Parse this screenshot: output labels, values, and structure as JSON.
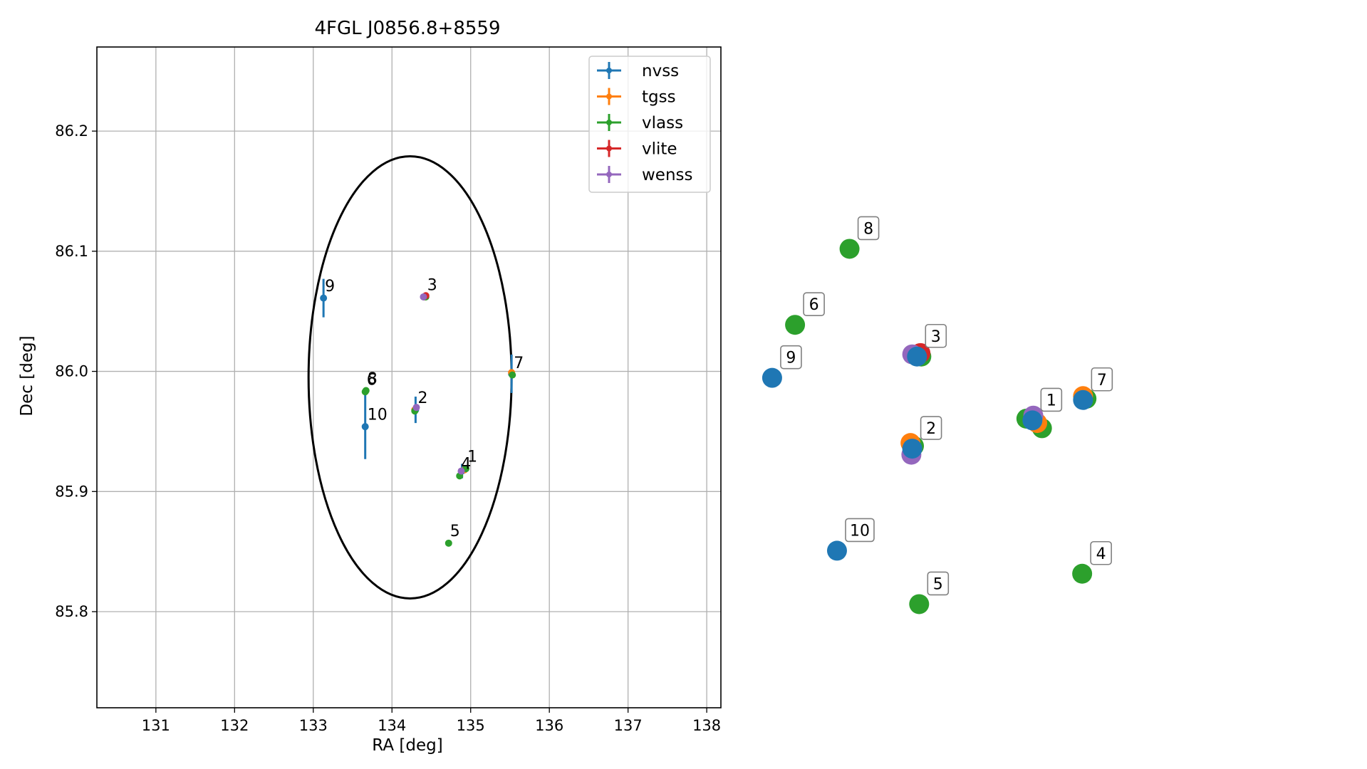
{
  "chart_data": [
    {
      "type": "scatter",
      "title": "4FGL J0856.8+8559",
      "xlabel": "RA [deg]",
      "ylabel": "Dec [deg]",
      "xlim": [
        130.25,
        138.18
      ],
      "ylim": [
        85.72,
        86.27
      ],
      "xticks": [
        "131",
        "132",
        "133",
        "134",
        "135",
        "136",
        "137",
        "138"
      ],
      "yticks": [
        "85.8",
        "85.9",
        "86.0",
        "86.1",
        "86.2"
      ],
      "grid": true,
      "legend_placement": "top-right",
      "colors": {
        "nvss": "#1f77b4",
        "tgss": "#ff7f0e",
        "vlass": "#2ca02c",
        "vlite": "#d62728",
        "wenss": "#9467bd"
      },
      "ellipse": {
        "center": [
          134.23,
          85.995
        ],
        "ra_semi_axis": 1.29,
        "dec_semi_axis": 0.184
      },
      "series": [
        {
          "name": "nvss",
          "points": [
            {
              "x": 134.89,
              "y": 85.917,
              "yerr": 0.006
            },
            {
              "x": 134.3,
              "y": 85.968,
              "yerr": 0.011
            },
            {
              "x": 134.41,
              "y": 86.062,
              "yerr": 0.003
            },
            {
              "x": 135.52,
              "y": 85.998,
              "yerr": 0.016
            },
            {
              "x": 133.13,
              "y": 86.061,
              "yerr": 0.016
            },
            {
              "x": 133.66,
              "y": 85.954,
              "yerr": 0.027
            }
          ]
        },
        {
          "name": "tgss",
          "points": [
            {
              "x": 134.92,
              "y": 85.918,
              "yerr": 0.002
            },
            {
              "x": 134.29,
              "y": 85.968,
              "yerr": 0.002
            },
            {
              "x": 134.42,
              "y": 86.062,
              "yerr": 0.002
            },
            {
              "x": 135.52,
              "y": 85.999,
              "yerr": 0.002
            }
          ]
        },
        {
          "name": "vlass",
          "points": [
            {
              "x": 134.94,
              "y": 85.919,
              "yerr": 0.002
            },
            {
              "x": 134.29,
              "y": 85.967,
              "yerr": 0.002
            },
            {
              "x": 134.43,
              "y": 86.062,
              "yerr": 0.002
            },
            {
              "x": 134.86,
              "y": 85.913,
              "yerr": 0.002
            },
            {
              "x": 134.72,
              "y": 85.857,
              "yerr": 0.002
            },
            {
              "x": 133.66,
              "y": 85.983,
              "yerr": 0.002
            },
            {
              "x": 135.53,
              "y": 85.997,
              "yerr": 0.002
            },
            {
              "x": 133.67,
              "y": 85.984,
              "yerr": 0.002
            }
          ]
        },
        {
          "name": "vlite",
          "points": [
            {
              "x": 134.43,
              "y": 86.063,
              "yerr": 0.002
            }
          ]
        },
        {
          "name": "wenss",
          "points": [
            {
              "x": 134.88,
              "y": 85.917,
              "yerr": 0.002
            },
            {
              "x": 134.31,
              "y": 85.97,
              "yerr": 0.002
            },
            {
              "x": 134.4,
              "y": 86.062,
              "yerr": 0.002
            }
          ]
        }
      ],
      "annotations": [
        {
          "text": "1",
          "x": 134.94,
          "y": 85.92
        },
        {
          "text": "2",
          "x": 134.31,
          "y": 85.969
        },
        {
          "text": "3",
          "x": 134.43,
          "y": 86.063
        },
        {
          "text": "4",
          "x": 134.86,
          "y": 85.914
        },
        {
          "text": "5",
          "x": 134.72,
          "y": 85.858
        },
        {
          "text": "6",
          "x": 133.66,
          "y": 85.984
        },
        {
          "text": "7",
          "x": 135.53,
          "y": 85.998
        },
        {
          "text": "8",
          "x": 133.67,
          "y": 85.985
        },
        {
          "text": "9",
          "x": 133.13,
          "y": 86.062
        },
        {
          "text": "10",
          "x": 133.67,
          "y": 85.955
        }
      ]
    },
    {
      "type": "scatter",
      "title": "",
      "grid": false,
      "axes": false,
      "nodes": [
        {
          "label": "1",
          "x": 0.62,
          "y": 0.478,
          "markers": [
            {
              "survey": "vlass",
              "dx": -0.014,
              "dy": 0.004
            },
            {
              "survey": "vlass",
              "dx": 0.022,
              "dy": -0.018
            },
            {
              "survey": "tgss",
              "dx": 0.011,
              "dy": -0.006
            },
            {
              "survey": "wenss",
              "dx": 0.002,
              "dy": 0.011
            },
            {
              "survey": "nvss",
              "dx": 0.0,
              "dy": 0.0
            }
          ]
        },
        {
          "label": "2",
          "x": 0.342,
          "y": 0.413,
          "markers": [
            {
              "survey": "vlass",
              "dx": 0.004,
              "dy": 0.006
            },
            {
              "survey": "tgss",
              "dx": -0.004,
              "dy": 0.013
            },
            {
              "survey": "wenss",
              "dx": -0.002,
              "dy": -0.014
            },
            {
              "survey": "nvss",
              "dx": 0.0,
              "dy": 0.0
            }
          ]
        },
        {
          "label": "3",
          "x": 0.353,
          "y": 0.625,
          "markers": [
            {
              "survey": "vlass",
              "dx": 0.01,
              "dy": 0.0
            },
            {
              "survey": "tgss",
              "dx": 0.004,
              "dy": 0.006
            },
            {
              "survey": "vlite",
              "dx": 0.008,
              "dy": 0.008
            },
            {
              "survey": "wenss",
              "dx": -0.011,
              "dy": 0.005
            },
            {
              "survey": "nvss",
              "dx": 0.0,
              "dy": 0.0
            }
          ]
        },
        {
          "label": "4",
          "x": 0.735,
          "y": 0.125,
          "markers": [
            {
              "survey": "vlass",
              "dx": 0,
              "dy": 0
            }
          ]
        },
        {
          "label": "5",
          "x": 0.358,
          "y": 0.055,
          "markers": [
            {
              "survey": "vlass",
              "dx": 0,
              "dy": 0
            }
          ]
        },
        {
          "label": "6",
          "x": 0.071,
          "y": 0.698,
          "markers": [
            {
              "survey": "vlass",
              "dx": 0,
              "dy": 0
            }
          ]
        },
        {
          "label": "7",
          "x": 0.737,
          "y": 0.525,
          "markers": [
            {
              "survey": "vlass",
              "dx": 0.008,
              "dy": 0.003
            },
            {
              "survey": "tgss",
              "dx": 0.0,
              "dy": 0.009
            },
            {
              "survey": "nvss",
              "dx": 0.0,
              "dy": 0.0
            }
          ]
        },
        {
          "label": "8",
          "x": 0.197,
          "y": 0.873,
          "markers": [
            {
              "survey": "vlass",
              "dx": 0,
              "dy": 0
            }
          ]
        },
        {
          "label": "9",
          "x": 0.018,
          "y": 0.576,
          "markers": [
            {
              "survey": "nvss",
              "dx": 0,
              "dy": 0
            }
          ]
        },
        {
          "label": "10",
          "x": 0.168,
          "y": 0.178,
          "markers": [
            {
              "survey": "nvss",
              "dx": 0,
              "dy": 0
            }
          ]
        }
      ]
    }
  ]
}
